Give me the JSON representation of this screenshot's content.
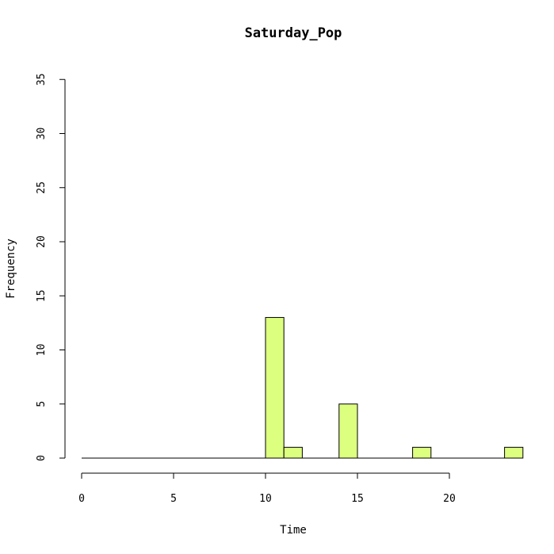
{
  "chart_data": {
    "type": "bar",
    "title": "Saturday_Pop",
    "xlabel": "Time",
    "ylabel": "Frequency",
    "bin_width": 1,
    "x_bins_start": 0,
    "x_bins_end": 24,
    "bins": [
      {
        "x0": 10,
        "x1": 11,
        "count": 13
      },
      {
        "x0": 11,
        "x1": 12,
        "count": 1
      },
      {
        "x0": 14,
        "x1": 15,
        "count": 5
      },
      {
        "x0": 18,
        "x1": 19,
        "count": 1
      },
      {
        "x0": 23,
        "x1": 24,
        "count": 1
      }
    ],
    "xlim": [
      0,
      24
    ],
    "ylim": [
      0,
      35
    ],
    "x_ticks": [
      "0",
      "5",
      "10",
      "15",
      "20"
    ],
    "y_ticks": [
      "0",
      "5",
      "10",
      "15",
      "20",
      "25",
      "30",
      "35"
    ],
    "bar_color": "#ddff80",
    "grid": false
  }
}
